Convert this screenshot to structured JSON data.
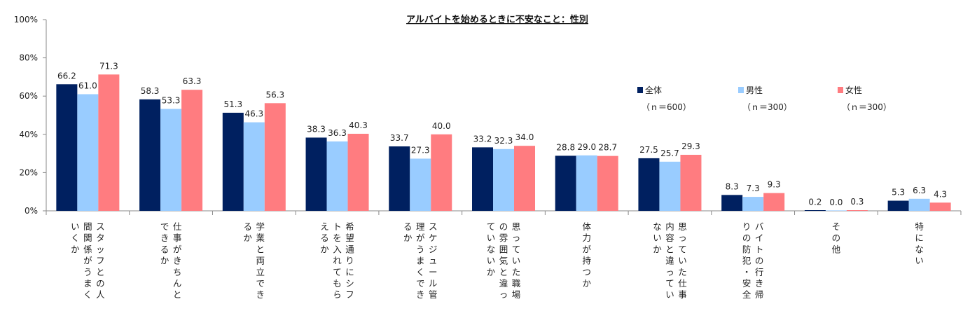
{
  "chart_data": {
    "type": "bar",
    "title": "アルバイトを始めるときに不安なこと：性別",
    "xlabel": "",
    "ylabel": "",
    "ylim": [
      0,
      100
    ],
    "yticks": [
      "0%",
      "20%",
      "40%",
      "60%",
      "80%",
      "100%"
    ],
    "legend_position": "top-right",
    "grid": false,
    "categories": [
      [
        "スタッフとの人",
        "間関係がうまく",
        "いくか"
      ],
      [
        "仕事がきちんと",
        "できるか"
      ],
      [
        "学業と両立でき",
        "るか"
      ],
      [
        "希望通りにシフ",
        "トを入れてもら",
        "えるか"
      ],
      [
        "スケジュール管",
        "理がうまくでき",
        "るか"
      ],
      [
        "思っていた職場",
        "の雰囲気と違っ",
        "ていないか"
      ],
      [
        "体力が持つか"
      ],
      [
        "思っていた仕事",
        "内容と違ってい",
        "ないか"
      ],
      [
        "バイトの行き帰",
        "りの防犯・安全"
      ],
      [
        "その他"
      ],
      [
        "特にない"
      ]
    ],
    "series": [
      {
        "name": "全体",
        "n": "（ｎ＝600）",
        "color": "#002060",
        "values": [
          66.2,
          58.3,
          51.3,
          38.3,
          33.7,
          33.2,
          28.8,
          27.5,
          8.3,
          0.2,
          5.3
        ],
        "labels": [
          "66.2",
          "58.3",
          "51.3",
          "38.3",
          "33.7",
          "33.2",
          "28.8",
          "27.5",
          "8.3",
          "0.2",
          "5.3"
        ]
      },
      {
        "name": "男性",
        "n": "（ｎ＝300）",
        "color": "#99ccff",
        "values": [
          61.0,
          53.3,
          46.3,
          36.3,
          27.3,
          32.3,
          29.0,
          25.7,
          7.3,
          0.0,
          6.3
        ],
        "labels": [
          "61.0",
          "53.3",
          "46.3",
          "36.3",
          "27.3",
          "32.3",
          "29.0",
          "25.7",
          "7.3",
          "0.0",
          "6.3"
        ]
      },
      {
        "name": "女性",
        "n": "（ｎ＝300）",
        "color": "#ff7c80",
        "values": [
          71.3,
          63.3,
          56.3,
          40.3,
          40.0,
          34.0,
          28.7,
          29.3,
          9.3,
          0.3,
          4.3
        ],
        "labels": [
          "71.3",
          "63.3",
          "56.3",
          "40.3",
          "40.0",
          "34.0",
          "28.7",
          "29.3",
          "9.3",
          "0.3",
          "4.3"
        ]
      }
    ]
  }
}
